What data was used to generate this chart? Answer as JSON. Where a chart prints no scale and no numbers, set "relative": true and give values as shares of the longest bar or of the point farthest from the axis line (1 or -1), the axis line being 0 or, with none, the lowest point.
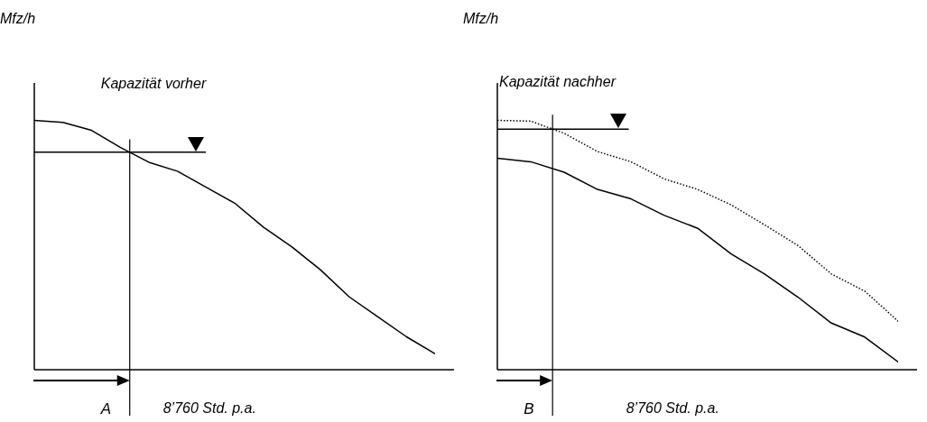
{
  "chart_data": [
    {
      "type": "line",
      "ylabel": "Mfz/h",
      "xlabel": "8’760 Std. p.a.",
      "relative": true,
      "categories": [
        null,
        null,
        null,
        null,
        null,
        null,
        null,
        null,
        null,
        null,
        null,
        null,
        null,
        null,
        null
      ],
      "series": [
        {
          "color": "#000000",
          "line_style": "solid",
          "values": [
            1,
            0.992,
            0.96,
            0.892,
            0.832,
            0.796,
            0.732,
            0.668,
            0.572,
            0.492,
            0.4,
            0.292,
            0.212,
            0.132,
            0.064
          ]
        }
      ],
      "ref_lines": [
        {
          "axis": "y",
          "value": 0.872,
          "label": "Kapazität vorher",
          "color": "#000000"
        },
        {
          "axis": "x",
          "label": "A",
          "color": "#000000"
        }
      ]
    },
    {
      "type": "line",
      "ylabel": "Mfz/h",
      "xlabel": "8’760 Std. p.a.",
      "relative": true,
      "categories": [
        null,
        null,
        null,
        null,
        null,
        null,
        null,
        null,
        null,
        null,
        null,
        null,
        null
      ],
      "series": [
        {
          "color": "#000000",
          "line_style": "solid",
          "values": [
            0.848,
            0.834,
            0.792,
            0.723,
            0.685,
            0.619,
            0.567,
            0.464,
            0.384,
            0.291,
            0.187,
            0.131,
            0.031
          ]
        },
        {
          "color": "#000000",
          "line_style": "dotted",
          "values": [
            1,
            0.997,
            0.948,
            0.875,
            0.834,
            0.765,
            0.723,
            0.661,
            0.581,
            0.498,
            0.384,
            0.315,
            0.194
          ]
        }
      ],
      "ref_lines": [
        {
          "axis": "y",
          "value": 0.965,
          "label": "Kapazität nachher",
          "color": "#000000"
        },
        {
          "axis": "x",
          "label": "B",
          "color": "#000000"
        }
      ]
    }
  ]
}
